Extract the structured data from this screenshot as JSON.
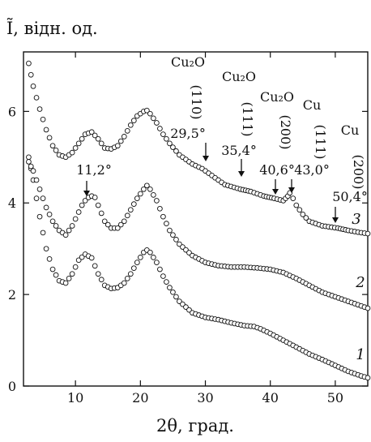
{
  "chart_data": {
    "type": "scatter",
    "title": "",
    "xlabel": "2θ, град.",
    "ylabel": "Ĩ, відн. од.",
    "xlim": [
      2,
      55
    ],
    "ylim": [
      0,
      7.3
    ],
    "x_ticks": [
      10,
      20,
      30,
      40,
      50
    ],
    "x_tick_labels": [
      "10",
      "20",
      "30",
      "40",
      "50"
    ],
    "y_ticks": [
      0,
      2,
      4,
      6
    ],
    "y_tick_labels": [
      "0",
      "2",
      "4",
      "6"
    ],
    "grid": false,
    "legend": "none",
    "marker": "open-circle",
    "series": [
      {
        "label": "1",
        "x": [
          2.8,
          3.5,
          4.5,
          5.5,
          6.5,
          7.5,
          8.5,
          9.5,
          10.5,
          11.5,
          12.5,
          13.5,
          14.5,
          15.5,
          16.5,
          17.5,
          18.5,
          19.5,
          20.5,
          21.0,
          21.5,
          22.5,
          23.5,
          24.5,
          26,
          28,
          30,
          32,
          34,
          36,
          37.5,
          38.5,
          40,
          42,
          44,
          46,
          48,
          50,
          52,
          54,
          55
        ],
        "y": [
          5.0,
          4.5,
          3.7,
          3.0,
          2.55,
          2.3,
          2.25,
          2.45,
          2.75,
          2.88,
          2.8,
          2.45,
          2.2,
          2.13,
          2.15,
          2.25,
          2.45,
          2.7,
          2.92,
          2.97,
          2.92,
          2.7,
          2.4,
          2.15,
          1.85,
          1.6,
          1.5,
          1.45,
          1.38,
          1.32,
          1.3,
          1.25,
          1.15,
          1.0,
          0.85,
          0.7,
          0.58,
          0.45,
          0.32,
          0.22,
          0.18
        ]
      },
      {
        "label": "2",
        "x": [
          2.8,
          3.5,
          4.5,
          5.5,
          6.5,
          7.5,
          8.5,
          9.5,
          10.5,
          11.0,
          11.5,
          12.0,
          12.5,
          13.0,
          13.5,
          14.5,
          15.5,
          16.5,
          17.5,
          18.5,
          19.5,
          20.5,
          21.0,
          21.5,
          22.5,
          23.5,
          24.5,
          26,
          28,
          30,
          32,
          34,
          36,
          38,
          40,
          42,
          44,
          46,
          48,
          50,
          52,
          54,
          55
        ],
        "y": [
          4.9,
          4.7,
          4.3,
          3.9,
          3.6,
          3.4,
          3.3,
          3.5,
          3.8,
          3.95,
          4.05,
          4.12,
          4.15,
          4.12,
          3.95,
          3.6,
          3.45,
          3.45,
          3.6,
          3.85,
          4.1,
          4.3,
          4.38,
          4.3,
          4.05,
          3.7,
          3.4,
          3.1,
          2.85,
          2.7,
          2.63,
          2.6,
          2.6,
          2.58,
          2.55,
          2.48,
          2.35,
          2.2,
          2.05,
          1.95,
          1.85,
          1.75,
          1.7
        ]
      },
      {
        "label": "3",
        "x": [
          2.8,
          3.5,
          4.5,
          5.5,
          6.5,
          7.5,
          8.5,
          9.5,
          10.5,
          11.5,
          12.5,
          13.5,
          14.5,
          15.5,
          16.5,
          17.5,
          18.5,
          19.5,
          20.5,
          21.0,
          21.5,
          22.5,
          23.5,
          24.5,
          26,
          28,
          29.5,
          31,
          33,
          35.4,
          37,
          39,
          40.6,
          42,
          42.7,
          43.0,
          43.5,
          44,
          45,
          46,
          48,
          50.4,
          52,
          54,
          55
        ],
        "y": [
          7.05,
          6.55,
          6.05,
          5.6,
          5.25,
          5.05,
          5.0,
          5.1,
          5.3,
          5.5,
          5.55,
          5.4,
          5.2,
          5.18,
          5.25,
          5.45,
          5.7,
          5.9,
          6.0,
          6.02,
          5.95,
          5.75,
          5.5,
          5.3,
          5.05,
          4.85,
          4.75,
          4.6,
          4.4,
          4.3,
          4.25,
          4.15,
          4.1,
          4.05,
          4.15,
          4.22,
          4.1,
          3.95,
          3.75,
          3.6,
          3.5,
          3.45,
          3.4,
          3.35,
          3.33
        ]
      }
    ],
    "annotations": [
      {
        "lines": [
          "11,2°"
        ],
        "x": 11.2,
        "y": 4.12,
        "text_pos": "above"
      },
      {
        "lines": [
          "Cu₂O",
          "(110)",
          "29,5°"
        ],
        "x": 29.5,
        "y": 4.75,
        "text_pos": "above"
      },
      {
        "lines": [
          "Cu₂O",
          "(111)",
          "35,4°"
        ],
        "x": 35.4,
        "y": 4.3,
        "text_pos": "above"
      },
      {
        "lines": [
          "Cu₂O",
          "(200)",
          "40,6°"
        ],
        "x": 40.6,
        "y": 4.1,
        "text_pos": "above"
      },
      {
        "lines": [
          "Cu",
          "(111)",
          "43,0°"
        ],
        "x": 43.0,
        "y": 4.22,
        "text_pos": "above"
      },
      {
        "lines": [
          "Cu",
          "(200)",
          "50,4°"
        ],
        "x": 50.4,
        "y": 3.45,
        "text_pos": "above"
      }
    ]
  }
}
